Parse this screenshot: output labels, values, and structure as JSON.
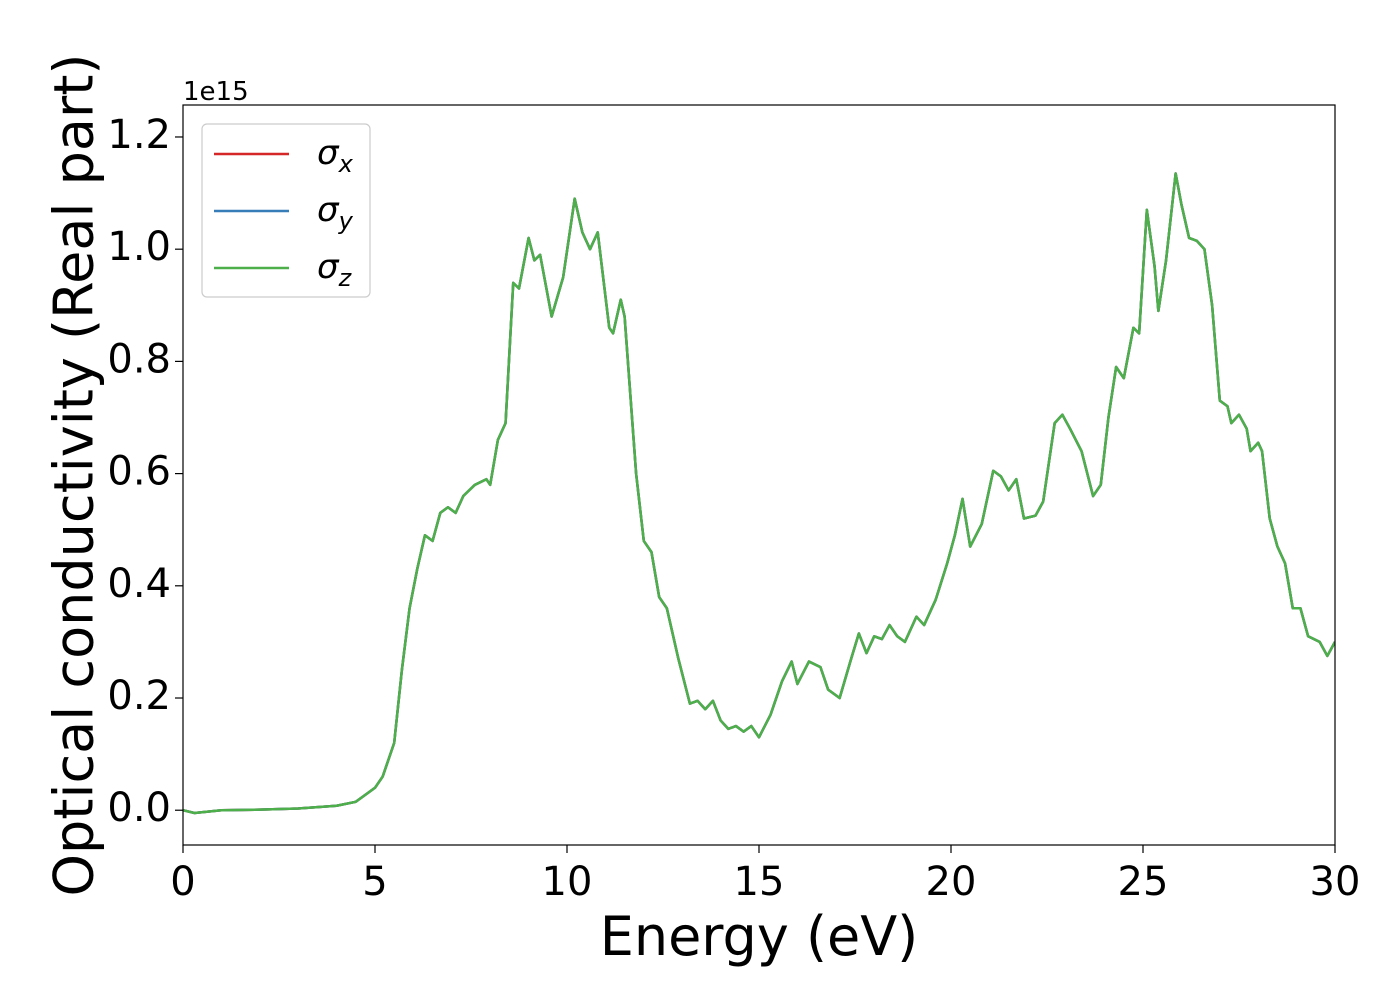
{
  "chart_data": {
    "type": "line",
    "xlabel": "Energy (eV)",
    "ylabel": "Optical conductivity (Real part)",
    "y_offset_label": "1e15",
    "legend": "upper left",
    "grid": false,
    "xlim": [
      0,
      30
    ],
    "ylim": [
      -0.062,
      1.257
    ],
    "xticks": [
      0,
      5,
      10,
      15,
      20,
      25,
      30
    ],
    "yticks": [
      {
        "value": 0,
        "label": "0.0"
      },
      0.2,
      0.4,
      0.6,
      0.8,
      {
        "value": 1,
        "label": "1.0"
      },
      1.2
    ],
    "x": [
      0,
      0.3,
      1,
      2,
      3,
      4,
      4.5,
      4.8,
      5.0,
      5.2,
      5.5,
      5.7,
      5.9,
      6.1,
      6.3,
      6.5,
      6.7,
      6.9,
      7.1,
      7.3,
      7.6,
      7.9,
      8.0,
      8.2,
      8.4,
      8.6,
      8.75,
      9.0,
      9.15,
      9.3,
      9.6,
      9.9,
      10.2,
      10.4,
      10.6,
      10.8,
      11.1,
      11.2,
      11.4,
      11.5,
      11.8,
      12.0,
      12.2,
      12.4,
      12.6,
      12.9,
      13.2,
      13.4,
      13.6,
      13.8,
      14.0,
      14.2,
      14.4,
      14.6,
      14.8,
      15.0,
      15.3,
      15.6,
      15.85,
      16.0,
      16.3,
      16.6,
      16.8,
      17.1,
      17.4,
      17.6,
      17.8,
      18.0,
      18.2,
      18.4,
      18.6,
      18.8,
      19.1,
      19.3,
      19.6,
      19.9,
      20.1,
      20.3,
      20.5,
      20.8,
      21.1,
      21.3,
      21.5,
      21.7,
      21.9,
      22.2,
      22.4,
      22.7,
      22.9,
      23.1,
      23.4,
      23.7,
      23.9,
      24.1,
      24.3,
      24.5,
      24.75,
      24.9,
      25.1,
      25.3,
      25.4,
      25.6,
      25.85,
      26.0,
      26.2,
      26.4,
      26.6,
      26.8,
      27.0,
      27.2,
      27.3,
      27.5,
      27.7,
      27.8,
      28.0,
      28.1,
      28.3,
      28.5,
      28.7,
      28.9,
      29.1,
      29.3,
      29.6,
      29.8,
      30.0
    ],
    "series": [
      {
        "name": "σx",
        "color": "#d62728",
        "values": [
          0.0,
          -0.005,
          0.0,
          0.001,
          0.003,
          0.008,
          0.015,
          0.03,
          0.04,
          0.06,
          0.12,
          0.25,
          0.36,
          0.43,
          0.49,
          0.48,
          0.53,
          0.54,
          0.53,
          0.56,
          0.58,
          0.59,
          0.58,
          0.66,
          0.69,
          0.94,
          0.93,
          1.02,
          0.98,
          0.99,
          0.88,
          0.95,
          1.09,
          1.03,
          1.0,
          1.03,
          0.86,
          0.85,
          0.91,
          0.88,
          0.6,
          0.48,
          0.46,
          0.38,
          0.36,
          0.27,
          0.19,
          0.195,
          0.18,
          0.195,
          0.16,
          0.145,
          0.15,
          0.14,
          0.15,
          0.13,
          0.17,
          0.23,
          0.265,
          0.225,
          0.265,
          0.255,
          0.215,
          0.2,
          0.27,
          0.315,
          0.28,
          0.31,
          0.305,
          0.33,
          0.31,
          0.3,
          0.345,
          0.33,
          0.375,
          0.44,
          0.49,
          0.555,
          0.47,
          0.51,
          0.605,
          0.595,
          0.57,
          0.59,
          0.52,
          0.525,
          0.55,
          0.69,
          0.705,
          0.68,
          0.64,
          0.56,
          0.58,
          0.7,
          0.79,
          0.77,
          0.86,
          0.85,
          1.07,
          0.97,
          0.89,
          0.98,
          1.135,
          1.08,
          1.02,
          1.015,
          1.0,
          0.9,
          0.73,
          0.72,
          0.69,
          0.705,
          0.68,
          0.64,
          0.655,
          0.64,
          0.52,
          0.47,
          0.44,
          0.36,
          0.36,
          0.31,
          0.3,
          0.275,
          0.3
        ]
      },
      {
        "name": "σy",
        "color": "#377eb8",
        "values": [
          0.0,
          -0.005,
          0.0,
          0.001,
          0.003,
          0.008,
          0.015,
          0.03,
          0.04,
          0.06,
          0.12,
          0.25,
          0.36,
          0.43,
          0.49,
          0.48,
          0.53,
          0.54,
          0.53,
          0.56,
          0.58,
          0.59,
          0.58,
          0.66,
          0.69,
          0.94,
          0.93,
          1.02,
          0.98,
          0.99,
          0.88,
          0.95,
          1.09,
          1.03,
          1.0,
          1.03,
          0.86,
          0.85,
          0.91,
          0.88,
          0.6,
          0.48,
          0.46,
          0.38,
          0.36,
          0.27,
          0.19,
          0.195,
          0.18,
          0.195,
          0.16,
          0.145,
          0.15,
          0.14,
          0.15,
          0.13,
          0.17,
          0.23,
          0.265,
          0.225,
          0.265,
          0.255,
          0.215,
          0.2,
          0.27,
          0.315,
          0.28,
          0.31,
          0.305,
          0.33,
          0.31,
          0.3,
          0.345,
          0.33,
          0.375,
          0.44,
          0.49,
          0.555,
          0.47,
          0.51,
          0.605,
          0.595,
          0.57,
          0.59,
          0.52,
          0.525,
          0.55,
          0.69,
          0.705,
          0.68,
          0.64,
          0.56,
          0.58,
          0.7,
          0.79,
          0.77,
          0.86,
          0.85,
          1.07,
          0.97,
          0.89,
          0.98,
          1.135,
          1.08,
          1.02,
          1.015,
          1.0,
          0.9,
          0.73,
          0.72,
          0.69,
          0.705,
          0.68,
          0.64,
          0.655,
          0.64,
          0.52,
          0.47,
          0.44,
          0.36,
          0.36,
          0.31,
          0.3,
          0.275,
          0.3
        ]
      },
      {
        "name": "σz",
        "color": "#4daf4a",
        "values": [
          0.0,
          -0.005,
          0.0,
          0.001,
          0.003,
          0.008,
          0.015,
          0.03,
          0.04,
          0.06,
          0.12,
          0.25,
          0.36,
          0.43,
          0.49,
          0.48,
          0.53,
          0.54,
          0.53,
          0.56,
          0.58,
          0.59,
          0.58,
          0.66,
          0.69,
          0.94,
          0.93,
          1.02,
          0.98,
          0.99,
          0.88,
          0.95,
          1.09,
          1.03,
          1.0,
          1.03,
          0.86,
          0.85,
          0.91,
          0.88,
          0.6,
          0.48,
          0.46,
          0.38,
          0.36,
          0.27,
          0.19,
          0.195,
          0.18,
          0.195,
          0.16,
          0.145,
          0.15,
          0.14,
          0.15,
          0.13,
          0.17,
          0.23,
          0.265,
          0.225,
          0.265,
          0.255,
          0.215,
          0.2,
          0.27,
          0.315,
          0.28,
          0.31,
          0.305,
          0.33,
          0.31,
          0.3,
          0.345,
          0.33,
          0.375,
          0.44,
          0.49,
          0.555,
          0.47,
          0.51,
          0.605,
          0.595,
          0.57,
          0.59,
          0.52,
          0.525,
          0.55,
          0.69,
          0.705,
          0.68,
          0.64,
          0.56,
          0.58,
          0.7,
          0.79,
          0.77,
          0.86,
          0.85,
          1.07,
          0.97,
          0.89,
          0.98,
          1.135,
          1.08,
          1.02,
          1.015,
          1.0,
          0.9,
          0.73,
          0.72,
          0.69,
          0.705,
          0.68,
          0.64,
          0.655,
          0.64,
          0.52,
          0.47,
          0.44,
          0.36,
          0.36,
          0.31,
          0.3,
          0.275,
          0.3
        ]
      }
    ]
  }
}
